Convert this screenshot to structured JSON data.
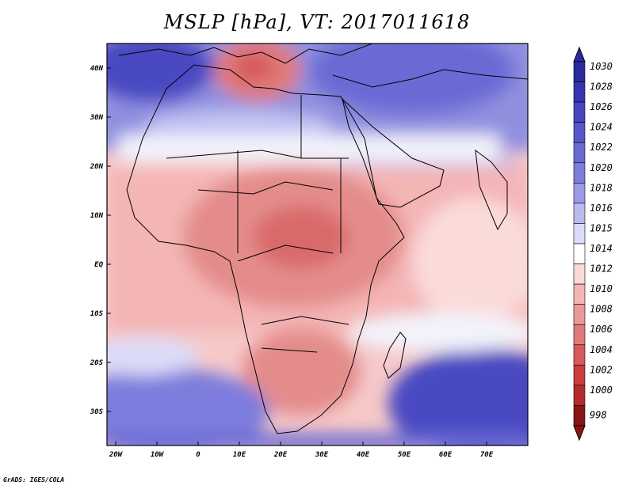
{
  "title": "MSLP [hPa], VT: 2017011618",
  "credit": "GrADS: IGES/COLA",
  "map": {
    "lon_ticks": [
      "20W",
      "10W",
      "0",
      "10E",
      "20E",
      "30E",
      "40E",
      "50E",
      "60E",
      "70E"
    ],
    "lat_ticks": [
      "40N",
      "30N",
      "20N",
      "10N",
      "EQ",
      "10S",
      "20S",
      "30S"
    ]
  },
  "colorbar": {
    "levels": [
      "1030",
      "1028",
      "1026",
      "1024",
      "1022",
      "1020",
      "1018",
      "1016",
      "1015",
      "1014",
      "1012",
      "1010",
      "1008",
      "1006",
      "1004",
      "1002",
      "1000",
      "998"
    ],
    "colors": [
      "#2a2a9e",
      "#3535b0",
      "#4545c0",
      "#5757cb",
      "#6a6ad5",
      "#7d7ddd",
      "#9a9ae6",
      "#babaf0",
      "#dcdcf8",
      "#ffffff",
      "#fbd9d9",
      "#f4b5b5",
      "#ea9999",
      "#e07a7a",
      "#d65a5a",
      "#c93d3d",
      "#b52a2a",
      "#8a1515"
    ]
  }
}
